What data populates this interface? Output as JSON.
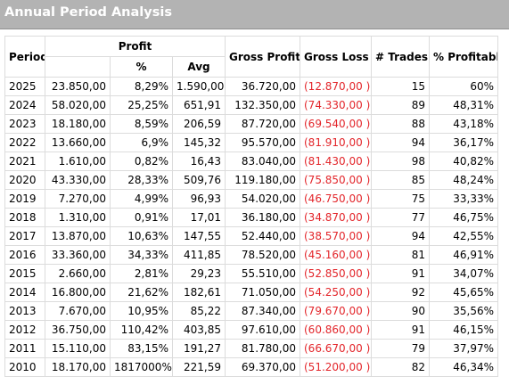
{
  "title": "Annual Period Analysis",
  "columns": {
    "period": "Period",
    "profit": "Profit",
    "profit_value": "",
    "profit_pct": "%",
    "profit_avg": "Avg",
    "gross_profit": "Gross Profit",
    "gross_loss": "Gross Loss",
    "trades": "# Trades",
    "pct_profitable": "% Profitable"
  },
  "colors": {
    "header_bar": "#b3b3b3",
    "loss_text": "#e3262b"
  },
  "rows": [
    {
      "period": "2025",
      "profit": "23.850,00",
      "pct": "8,29%",
      "avg": "1.590,00",
      "gross_profit": "36.720,00",
      "gross_loss": "(12.870,00 )",
      "trades": "15",
      "pct_profitable": "60%"
    },
    {
      "period": "2024",
      "profit": "58.020,00",
      "pct": "25,25%",
      "avg": "651,91",
      "gross_profit": "132.350,00",
      "gross_loss": "(74.330,00 )",
      "trades": "89",
      "pct_profitable": "48,31%"
    },
    {
      "period": "2023",
      "profit": "18.180,00",
      "pct": "8,59%",
      "avg": "206,59",
      "gross_profit": "87.720,00",
      "gross_loss": "(69.540,00 )",
      "trades": "88",
      "pct_profitable": "43,18%"
    },
    {
      "period": "2022",
      "profit": "13.660,00",
      "pct": "6,9%",
      "avg": "145,32",
      "gross_profit": "95.570,00",
      "gross_loss": "(81.910,00 )",
      "trades": "94",
      "pct_profitable": "36,17%"
    },
    {
      "period": "2021",
      "profit": "1.610,00",
      "pct": "0,82%",
      "avg": "16,43",
      "gross_profit": "83.040,00",
      "gross_loss": "(81.430,00 )",
      "trades": "98",
      "pct_profitable": "40,82%"
    },
    {
      "period": "2020",
      "profit": "43.330,00",
      "pct": "28,33%",
      "avg": "509,76",
      "gross_profit": "119.180,00",
      "gross_loss": "(75.850,00 )",
      "trades": "85",
      "pct_profitable": "48,24%"
    },
    {
      "period": "2019",
      "profit": "7.270,00",
      "pct": "4,99%",
      "avg": "96,93",
      "gross_profit": "54.020,00",
      "gross_loss": "(46.750,00 )",
      "trades": "75",
      "pct_profitable": "33,33%"
    },
    {
      "period": "2018",
      "profit": "1.310,00",
      "pct": "0,91%",
      "avg": "17,01",
      "gross_profit": "36.180,00",
      "gross_loss": "(34.870,00 )",
      "trades": "77",
      "pct_profitable": "46,75%"
    },
    {
      "period": "2017",
      "profit": "13.870,00",
      "pct": "10,63%",
      "avg": "147,55",
      "gross_profit": "52.440,00",
      "gross_loss": "(38.570,00 )",
      "trades": "94",
      "pct_profitable": "42,55%"
    },
    {
      "period": "2016",
      "profit": "33.360,00",
      "pct": "34,33%",
      "avg": "411,85",
      "gross_profit": "78.520,00",
      "gross_loss": "(45.160,00 )",
      "trades": "81",
      "pct_profitable": "46,91%"
    },
    {
      "period": "2015",
      "profit": "2.660,00",
      "pct": "2,81%",
      "avg": "29,23",
      "gross_profit": "55.510,00",
      "gross_loss": "(52.850,00 )",
      "trades": "91",
      "pct_profitable": "34,07%"
    },
    {
      "period": "2014",
      "profit": "16.800,00",
      "pct": "21,62%",
      "avg": "182,61",
      "gross_profit": "71.050,00",
      "gross_loss": "(54.250,00 )",
      "trades": "92",
      "pct_profitable": "45,65%"
    },
    {
      "period": "2013",
      "profit": "7.670,00",
      "pct": "10,95%",
      "avg": "85,22",
      "gross_profit": "87.340,00",
      "gross_loss": "(79.670,00 )",
      "trades": "90",
      "pct_profitable": "35,56%"
    },
    {
      "period": "2012",
      "profit": "36.750,00",
      "pct": "110,42%",
      "avg": "403,85",
      "gross_profit": "97.610,00",
      "gross_loss": "(60.860,00 )",
      "trades": "91",
      "pct_profitable": "46,15%"
    },
    {
      "period": "2011",
      "profit": "15.110,00",
      "pct": "83,15%",
      "avg": "191,27",
      "gross_profit": "81.780,00",
      "gross_loss": "(66.670,00 )",
      "trades": "79",
      "pct_profitable": "37,97%"
    },
    {
      "period": "2010",
      "profit": "18.170,00",
      "pct": "1817000%",
      "avg": "221,59",
      "gross_profit": "69.370,00",
      "gross_loss": "(51.200,00 )",
      "trades": "82",
      "pct_profitable": "46,34%"
    }
  ]
}
